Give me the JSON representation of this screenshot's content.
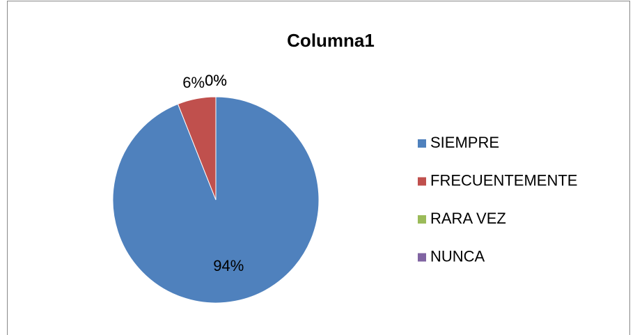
{
  "chart_data": {
    "type": "pie",
    "title": "Columna1",
    "categories": [
      "SIEMPRE",
      "FRECUENTEMENTE",
      "RARA VEZ",
      "NUNCA"
    ],
    "values": [
      94,
      6,
      0,
      0
    ],
    "value_labels": [
      "94%",
      "6%",
      "0%",
      "0%"
    ],
    "colors": [
      "#4f81bd",
      "#c0504d",
      "#9bbb59",
      "#8064a2"
    ],
    "legend": "right"
  }
}
